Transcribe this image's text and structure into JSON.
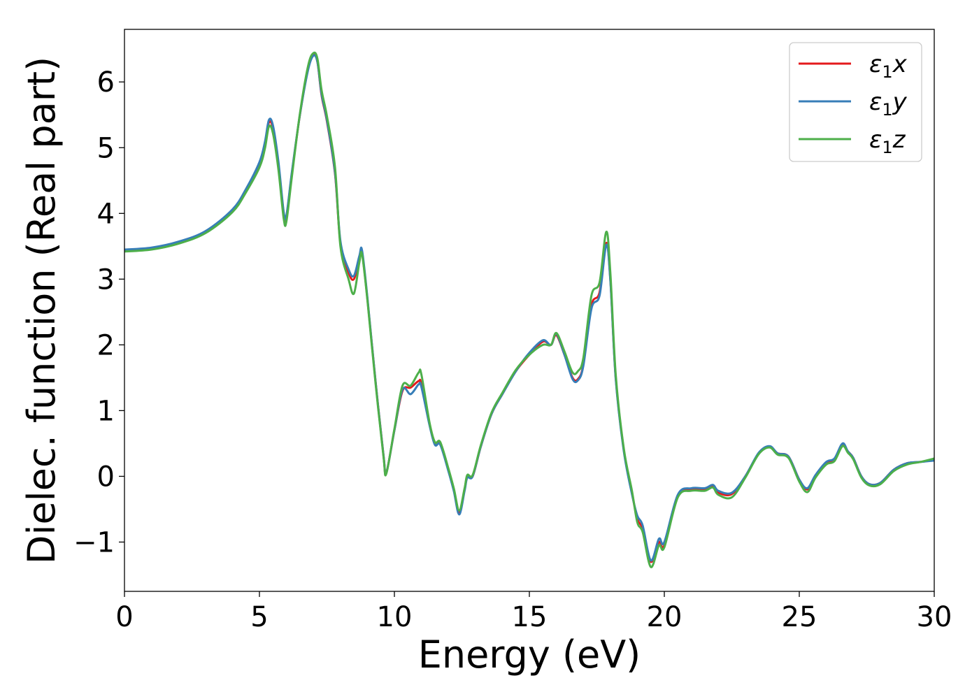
{
  "chart_data": {
    "type": "line",
    "xlabel": "Energy (eV)",
    "ylabel": "Dielec. function (Real part)",
    "xlim": [
      0,
      30
    ],
    "ylim": [
      -1.75,
      6.8
    ],
    "xticks": [
      0,
      5,
      10,
      15,
      20,
      25,
      30
    ],
    "xtick_labels": [
      "0",
      "5",
      "10",
      "15",
      "20",
      "25",
      "30"
    ],
    "yticks": [
      -1,
      0,
      1,
      2,
      3,
      4,
      5,
      6
    ],
    "ytick_labels": [
      "−1",
      "0",
      "1",
      "2",
      "3",
      "4",
      "5",
      "6"
    ],
    "grid": false,
    "legend_position": "top-right",
    "series": [
      {
        "name": "ε₁x",
        "legend_parts": [
          "ε",
          "1",
          "x"
        ],
        "color": "#e41a1c",
        "x": [
          0,
          1,
          2,
          3,
          4,
          4.5,
          5,
          5.2,
          5.35,
          5.5,
          5.7,
          5.9,
          6.0,
          6.2,
          6.5,
          6.8,
          7.0,
          7.15,
          7.3,
          7.5,
          7.8,
          8.0,
          8.3,
          8.5,
          8.7,
          8.8,
          9.0,
          9.3,
          9.6,
          9.7,
          10.0,
          10.3,
          10.6,
          10.9,
          11.0,
          11.3,
          11.5,
          11.7,
          12.0,
          12.2,
          12.4,
          12.6,
          12.7,
          12.9,
          13.2,
          13.6,
          14.0,
          14.5,
          15.0,
          15.5,
          15.8,
          16.0,
          16.3,
          16.6,
          16.8,
          17.0,
          17.3,
          17.6,
          17.85,
          18.0,
          18.2,
          18.5,
          18.8,
          19.0,
          19.2,
          19.5,
          19.8,
          20.0,
          20.5,
          21.0,
          21.5,
          21.8,
          22.0,
          22.5,
          23.0,
          23.5,
          23.9,
          24.2,
          24.6,
          25.0,
          25.3,
          25.6,
          26.0,
          26.3,
          26.6,
          26.8,
          27.0,
          27.3,
          27.6,
          28.0,
          28.5,
          29.0,
          29.5,
          30.0
        ],
        "y": [
          3.44,
          3.47,
          3.56,
          3.72,
          4.05,
          4.35,
          4.75,
          5.05,
          5.38,
          5.3,
          4.75,
          4.0,
          3.95,
          4.6,
          5.5,
          6.2,
          6.42,
          6.3,
          5.8,
          5.4,
          4.6,
          3.55,
          3.1,
          3.0,
          3.3,
          3.4,
          2.7,
          1.45,
          0.3,
          0.05,
          0.7,
          1.3,
          1.35,
          1.45,
          1.4,
          0.8,
          0.5,
          0.5,
          0.1,
          -0.2,
          -0.55,
          -0.2,
          0.0,
          0.0,
          0.45,
          0.95,
          1.25,
          1.6,
          1.85,
          2.05,
          2.0,
          2.15,
          1.85,
          1.5,
          1.48,
          1.7,
          2.6,
          2.8,
          3.55,
          3.0,
          1.5,
          0.4,
          -0.25,
          -0.65,
          -0.8,
          -1.3,
          -1.0,
          -1.05,
          -0.3,
          -0.2,
          -0.2,
          -0.15,
          -0.25,
          -0.27,
          0.0,
          0.35,
          0.45,
          0.35,
          0.3,
          -0.05,
          -0.2,
          0.0,
          0.2,
          0.25,
          0.48,
          0.38,
          0.28,
          0.0,
          -0.12,
          -0.1,
          0.1,
          0.2,
          0.22,
          0.25
        ]
      },
      {
        "name": "ε₁y",
        "legend_parts": [
          "ε",
          "1",
          "y"
        ],
        "color": "#377eb8",
        "x": [
          0,
          1,
          2,
          3,
          4,
          4.5,
          5,
          5.2,
          5.35,
          5.5,
          5.7,
          5.9,
          6.0,
          6.2,
          6.5,
          6.8,
          7.0,
          7.15,
          7.3,
          7.5,
          7.8,
          8.0,
          8.3,
          8.5,
          8.7,
          8.8,
          9.0,
          9.3,
          9.6,
          9.7,
          10.0,
          10.3,
          10.6,
          10.9,
          11.0,
          11.3,
          11.5,
          11.7,
          12.0,
          12.2,
          12.4,
          12.6,
          12.7,
          12.9,
          13.2,
          13.6,
          14.0,
          14.5,
          15.0,
          15.5,
          15.8,
          16.0,
          16.3,
          16.6,
          16.8,
          17.0,
          17.3,
          17.6,
          17.85,
          18.0,
          18.2,
          18.5,
          18.8,
          19.0,
          19.2,
          19.5,
          19.8,
          20.0,
          20.5,
          21.0,
          21.5,
          21.8,
          22.0,
          22.5,
          23.0,
          23.5,
          23.9,
          24.2,
          24.6,
          25.0,
          25.3,
          25.6,
          26.0,
          26.3,
          26.6,
          26.8,
          27.0,
          27.3,
          27.6,
          28.0,
          28.5,
          29.0,
          29.5,
          30.0
        ],
        "y": [
          3.45,
          3.48,
          3.57,
          3.73,
          4.06,
          4.37,
          4.78,
          5.08,
          5.42,
          5.34,
          4.8,
          4.02,
          3.97,
          4.62,
          5.5,
          6.18,
          6.4,
          6.3,
          5.82,
          5.42,
          4.62,
          3.58,
          3.15,
          3.05,
          3.35,
          3.44,
          2.72,
          1.45,
          0.3,
          0.05,
          0.7,
          1.32,
          1.25,
          1.4,
          1.36,
          0.78,
          0.48,
          0.48,
          0.08,
          -0.22,
          -0.58,
          -0.22,
          -0.02,
          0.0,
          0.45,
          0.95,
          1.25,
          1.6,
          1.88,
          2.07,
          2.0,
          2.17,
          1.85,
          1.48,
          1.46,
          1.68,
          2.55,
          2.75,
          3.52,
          2.98,
          1.48,
          0.38,
          -0.27,
          -0.6,
          -0.75,
          -1.28,
          -0.95,
          -1.0,
          -0.28,
          -0.18,
          -0.18,
          -0.13,
          -0.22,
          -0.25,
          0.0,
          0.36,
          0.46,
          0.35,
          0.3,
          -0.05,
          -0.18,
          0.02,
          0.22,
          0.27,
          0.5,
          0.38,
          0.28,
          0.0,
          -0.12,
          -0.1,
          0.1,
          0.2,
          0.22,
          0.24
        ]
      },
      {
        "name": "ε₁z",
        "legend_parts": [
          "ε",
          "1",
          "z"
        ],
        "color": "#4daf4a",
        "x": [
          0,
          1,
          2,
          3,
          4,
          4.5,
          5,
          5.2,
          5.35,
          5.5,
          5.7,
          5.9,
          6.0,
          6.2,
          6.5,
          6.8,
          7.0,
          7.15,
          7.3,
          7.5,
          7.8,
          8.0,
          8.3,
          8.5,
          8.7,
          8.8,
          9.0,
          9.3,
          9.6,
          9.7,
          10.0,
          10.3,
          10.6,
          10.9,
          11.0,
          11.3,
          11.5,
          11.7,
          12.0,
          12.2,
          12.4,
          12.6,
          12.7,
          12.9,
          13.2,
          13.6,
          14.0,
          14.5,
          15.0,
          15.5,
          15.8,
          16.0,
          16.3,
          16.6,
          16.8,
          17.0,
          17.3,
          17.6,
          17.85,
          18.0,
          18.2,
          18.5,
          18.8,
          19.0,
          19.2,
          19.5,
          19.8,
          20.0,
          20.5,
          21.0,
          21.5,
          21.8,
          22.0,
          22.5,
          23.0,
          23.5,
          23.9,
          24.2,
          24.6,
          25.0,
          25.3,
          25.6,
          26.0,
          26.3,
          26.6,
          26.8,
          27.0,
          27.3,
          27.6,
          28.0,
          28.5,
          29.0,
          29.5,
          30.0
        ],
        "y": [
          3.42,
          3.45,
          3.54,
          3.7,
          4.02,
          4.32,
          4.7,
          4.98,
          5.32,
          5.22,
          4.68,
          3.92,
          3.88,
          4.55,
          5.52,
          6.24,
          6.44,
          6.35,
          5.88,
          5.48,
          4.7,
          3.5,
          3.0,
          2.78,
          3.25,
          3.38,
          2.68,
          1.42,
          0.28,
          0.04,
          0.72,
          1.38,
          1.38,
          1.58,
          1.55,
          0.82,
          0.52,
          0.52,
          0.12,
          -0.18,
          -0.52,
          -0.18,
          0.02,
          0.02,
          0.47,
          0.97,
          1.27,
          1.62,
          1.85,
          2.0,
          2.0,
          2.18,
          1.9,
          1.58,
          1.6,
          1.8,
          2.75,
          2.95,
          3.72,
          3.1,
          1.55,
          0.42,
          -0.22,
          -0.7,
          -0.85,
          -1.38,
          -1.05,
          -1.08,
          -0.32,
          -0.22,
          -0.22,
          -0.17,
          -0.28,
          -0.32,
          -0.02,
          0.34,
          0.44,
          0.33,
          0.28,
          -0.08,
          -0.24,
          -0.02,
          0.18,
          0.23,
          0.46,
          0.36,
          0.26,
          -0.02,
          -0.14,
          -0.12,
          0.08,
          0.18,
          0.22,
          0.27
        ]
      }
    ]
  }
}
